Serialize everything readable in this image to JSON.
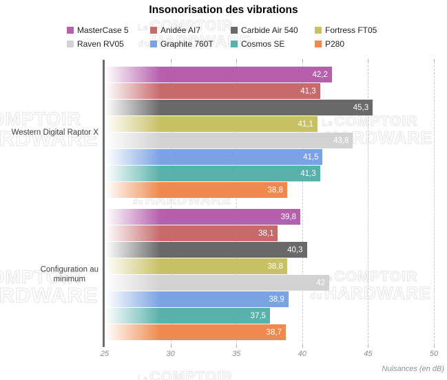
{
  "title": "Insonorisation des vibrations",
  "watermark": {
    "small1": "Le",
    "big1": "COMPTOIR",
    "small2": "du",
    "big2": "HARDWARE"
  },
  "chart_data": {
    "type": "bar",
    "orientation": "horizontal",
    "title": "Insonorisation des vibrations",
    "xlabel": "Nuisances (en dB)",
    "xlim": [
      25,
      50
    ],
    "ticks": [
      25,
      30,
      35,
      40,
      45,
      50
    ],
    "grid": "vertical-dashed",
    "legend_position": "top",
    "categories": [
      {
        "label": "Western Digital Raptor X"
      },
      {
        "label": "Configuration au\nminimum"
      }
    ],
    "series": [
      {
        "name": "MasterCase 5",
        "color": "#b55fad",
        "values": [
          42.2,
          39.8
        ],
        "labels": [
          "42,2",
          "39,8"
        ]
      },
      {
        "name": "Anidée AI7",
        "color": "#c76a6c",
        "values": [
          41.3,
          38.1
        ],
        "labels": [
          "41,3",
          "38,1"
        ]
      },
      {
        "name": "Carbide Air 540",
        "color": "#696969",
        "values": [
          45.3,
          40.3
        ],
        "labels": [
          "45,3",
          "40,3"
        ]
      },
      {
        "name": "Fortress FT05",
        "color": "#c8c164",
        "values": [
          41.1,
          38.8
        ],
        "labels": [
          "41,1",
          "38,8"
        ]
      },
      {
        "name": "Raven RV05",
        "color": "#d2d2d2",
        "values": [
          43.8,
          42.0
        ],
        "labels": [
          "43,8",
          "42"
        ]
      },
      {
        "name": "Graphite 760T",
        "color": "#7aa3e3",
        "values": [
          41.5,
          38.9
        ],
        "labels": [
          "41,5",
          "38,9"
        ]
      },
      {
        "name": "Cosmos SE",
        "color": "#58b1aa",
        "values": [
          41.3,
          37.5
        ],
        "labels": [
          "41,3",
          "37,5"
        ]
      },
      {
        "name": "P280",
        "color": "#ee8a4d",
        "values": [
          38.8,
          38.7
        ],
        "labels": [
          "38,8",
          "38,7"
        ]
      }
    ]
  }
}
